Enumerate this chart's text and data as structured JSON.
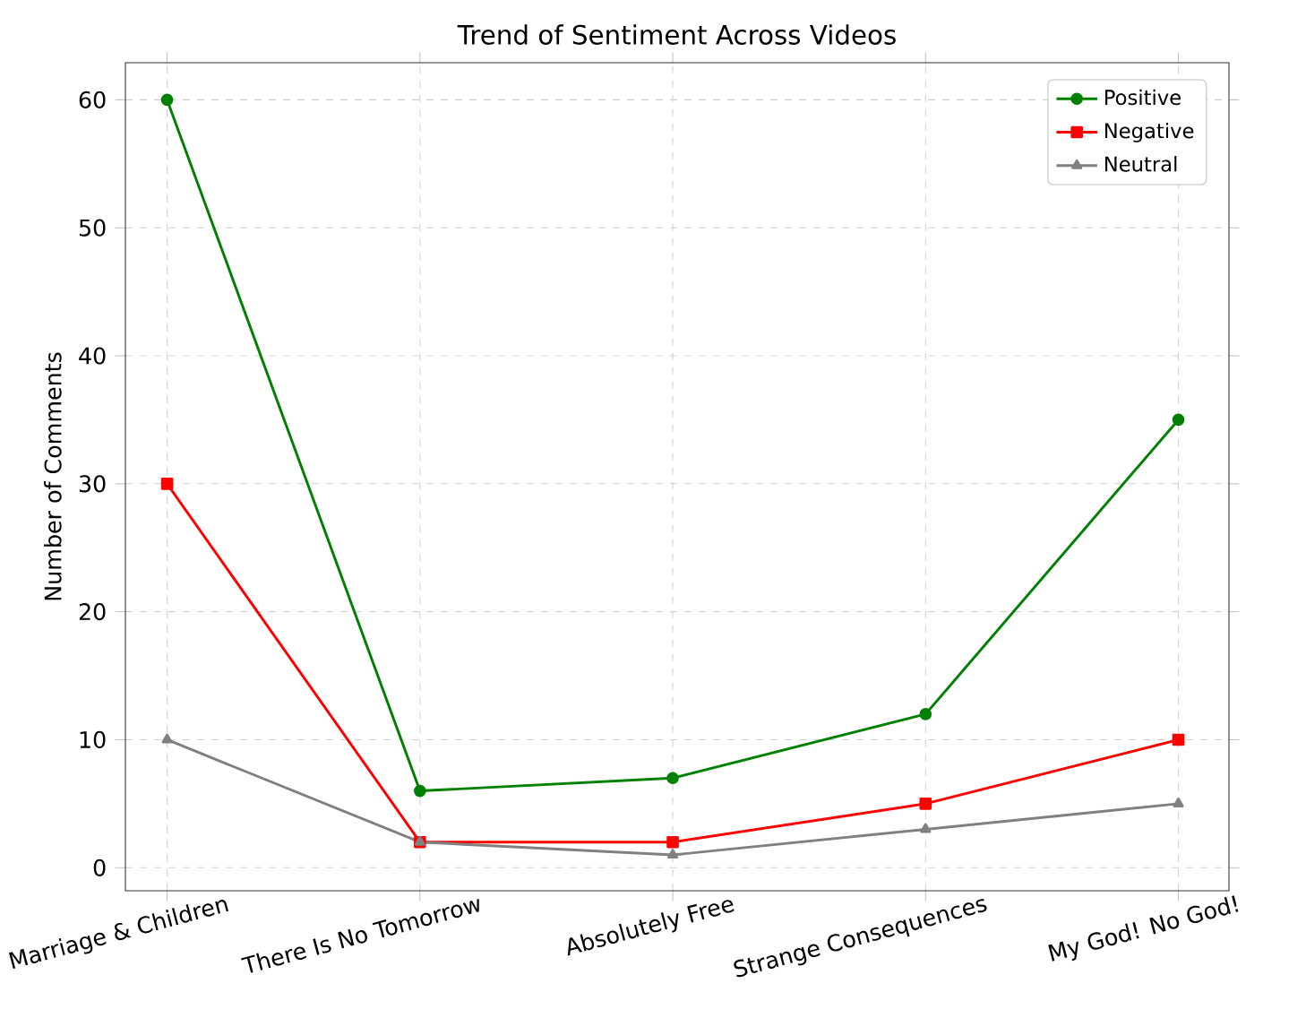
{
  "chart_data": {
    "type": "line",
    "title": "Trend of Sentiment Across Videos",
    "ylabel": "Number of Comments",
    "categories": [
      "Marriage & Children",
      "There Is No Tomorrow",
      "Absolutely Free",
      "Strange Consequences",
      "My God! No God!"
    ],
    "series": [
      {
        "name": "Positive",
        "color": "#008000",
        "marker": "circle",
        "values": [
          60,
          6,
          7,
          12,
          35
        ]
      },
      {
        "name": "Negative",
        "color": "#ff0000",
        "marker": "square",
        "values": [
          30,
          2,
          2,
          5,
          10
        ]
      },
      {
        "name": "Neutral",
        "color": "#808080",
        "marker": "triangle",
        "values": [
          10,
          2,
          1,
          3,
          5
        ]
      }
    ],
    "ylim": [
      -1.8,
      62.9
    ],
    "yticks": [
      0,
      10,
      20,
      30,
      40,
      50,
      60
    ],
    "grid": true,
    "legend": "top right",
    "line_style": "solid"
  }
}
